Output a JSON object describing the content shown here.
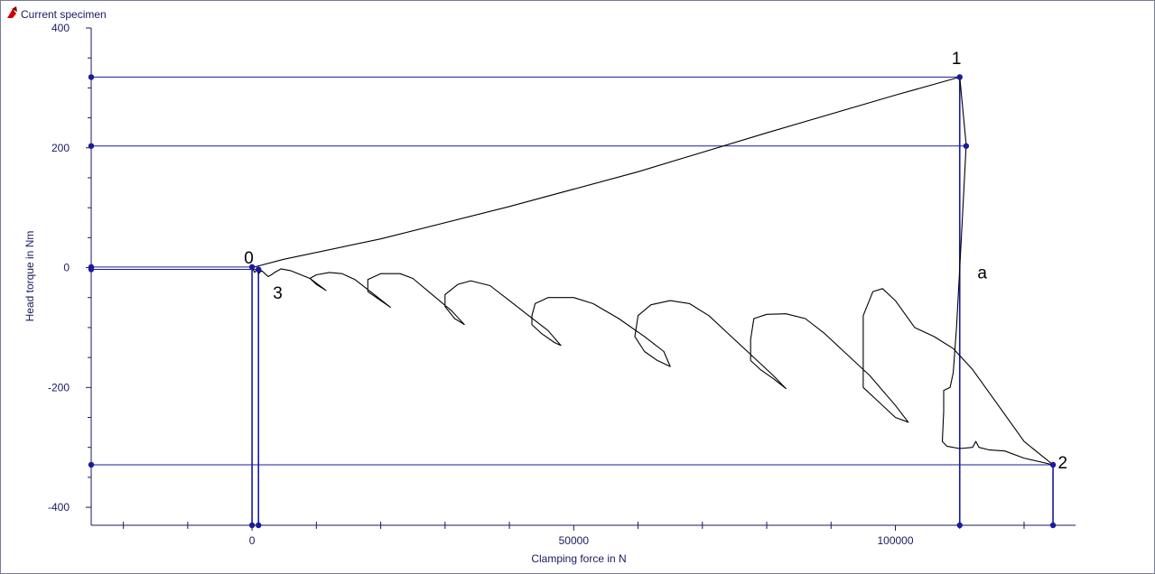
{
  "legend": {
    "label": "Current specimen",
    "icon": "red-specimen-icon",
    "icon_color": "#cc0000"
  },
  "chart_data": {
    "type": "line",
    "xlabel": "Clamping force in N",
    "ylabel": "Head torque in Nm",
    "xlim": [
      -25000,
      128000
    ],
    "ylim": [
      -430,
      400
    ],
    "x_ticks": [
      0,
      50000,
      100000
    ],
    "y_ticks": [
      400,
      200,
      0,
      -200,
      -400
    ],
    "curve_color": "#000000",
    "marker_color": "#1a1aa0",
    "annotations": [
      {
        "text": "0",
        "x": -500,
        "y": 7
      },
      {
        "text": "1",
        "x": 109500,
        "y": 340
      },
      {
        "text": "2",
        "x": 126000,
        "y": -335
      },
      {
        "text": "3",
        "x": 4000,
        "y": -52
      },
      {
        "text": "a",
        "x": 113500,
        "y": -18
      }
    ],
    "reference_lines": {
      "horizontal_y": [
        318,
        203,
        1,
        -3,
        -329
      ],
      "vertical_x": [
        0,
        1000,
        110000,
        124500
      ]
    },
    "series": [
      {
        "points": [
          [
            0,
            0
          ],
          [
            5000,
            14
          ],
          [
            20000,
            48
          ],
          [
            40000,
            102
          ],
          [
            60000,
            160
          ],
          [
            80000,
            225
          ],
          [
            100000,
            288
          ],
          [
            110000,
            318
          ],
          [
            111000,
            205
          ],
          [
            110500,
            100
          ],
          [
            110000,
            0
          ],
          [
            109500,
            -100
          ],
          [
            109000,
            -175
          ],
          [
            108500,
            -200
          ],
          [
            107500,
            -205
          ],
          [
            107500,
            -240
          ],
          [
            107300,
            -290
          ],
          [
            108000,
            -298
          ],
          [
            110000,
            -302
          ],
          [
            112000,
            -300
          ],
          [
            112500,
            -290
          ],
          [
            113000,
            -300
          ],
          [
            114500,
            -304
          ],
          [
            117000,
            -306
          ],
          [
            120000,
            -318
          ],
          [
            124500,
            -329
          ],
          [
            120000,
            -290
          ],
          [
            116000,
            -230
          ],
          [
            112000,
            -170
          ],
          [
            109000,
            -135
          ],
          [
            106000,
            -115
          ],
          [
            103000,
            -100
          ],
          [
            100000,
            -55
          ],
          [
            98000,
            -35
          ],
          [
            96500,
            -40
          ],
          [
            95000,
            -80
          ],
          [
            95000,
            -160
          ],
          [
            95000,
            -200
          ],
          [
            97000,
            -220
          ],
          [
            100000,
            -250
          ],
          [
            102000,
            -258
          ],
          [
            100000,
            -230
          ],
          [
            96000,
            -180
          ],
          [
            92000,
            -140
          ],
          [
            89000,
            -110
          ],
          [
            86000,
            -85
          ],
          [
            83000,
            -77
          ],
          [
            80000,
            -78
          ],
          [
            78000,
            -85
          ],
          [
            77500,
            -120
          ],
          [
            77500,
            -155
          ],
          [
            79000,
            -170
          ],
          [
            81000,
            -185
          ],
          [
            83000,
            -202
          ],
          [
            81000,
            -180
          ],
          [
            78000,
            -150
          ],
          [
            74000,
            -110
          ],
          [
            71000,
            -80
          ],
          [
            68000,
            -60
          ],
          [
            65000,
            -55
          ],
          [
            62000,
            -62
          ],
          [
            60000,
            -80
          ],
          [
            59500,
            -115
          ],
          [
            61000,
            -140
          ],
          [
            63000,
            -155
          ],
          [
            65000,
            -165
          ],
          [
            64000,
            -140
          ],
          [
            61000,
            -115
          ],
          [
            57000,
            -85
          ],
          [
            53000,
            -60
          ],
          [
            50000,
            -50
          ],
          [
            46000,
            -50
          ],
          [
            44000,
            -60
          ],
          [
            43500,
            -80
          ],
          [
            43500,
            -95
          ],
          [
            45000,
            -110
          ],
          [
            47000,
            -125
          ],
          [
            48000,
            -130
          ],
          [
            46000,
            -105
          ],
          [
            43000,
            -80
          ],
          [
            40000,
            -55
          ],
          [
            37000,
            -30
          ],
          [
            34000,
            -22
          ],
          [
            32000,
            -28
          ],
          [
            30000,
            -45
          ],
          [
            30000,
            -65
          ],
          [
            31500,
            -85
          ],
          [
            33000,
            -95
          ],
          [
            31000,
            -72
          ],
          [
            28000,
            -45
          ],
          [
            25000,
            -18
          ],
          [
            23000,
            -10
          ],
          [
            20000,
            -10
          ],
          [
            18000,
            -20
          ],
          [
            18000,
            -40
          ],
          [
            20000,
            -55
          ],
          [
            21500,
            -66
          ],
          [
            19000,
            -45
          ],
          [
            16000,
            -20
          ],
          [
            14000,
            -10
          ],
          [
            12000,
            -8
          ],
          [
            10000,
            -12
          ],
          [
            9000,
            -18
          ],
          [
            10000,
            -28
          ],
          [
            11500,
            -38
          ],
          [
            9000,
            -18
          ],
          [
            6000,
            -5
          ],
          [
            4500,
            -2
          ],
          [
            3500,
            -8
          ],
          [
            3000,
            -12
          ],
          [
            2500,
            -15
          ],
          [
            2000,
            -10
          ],
          [
            1500,
            -5
          ],
          [
            1000,
            -10
          ],
          [
            700,
            -3
          ],
          [
            400,
            -8
          ],
          [
            0,
            0
          ]
        ]
      }
    ],
    "markers": [
      {
        "x": -25000,
        "y": 318
      },
      {
        "x": -25000,
        "y": 203
      },
      {
        "x": -25000,
        "y": 1
      },
      {
        "x": -25000,
        "y": -3
      },
      {
        "x": -25000,
        "y": -329
      },
      {
        "x": 0,
        "y": -430
      },
      {
        "x": 1000,
        "y": -430
      },
      {
        "x": 110000,
        "y": -430
      },
      {
        "x": 124500,
        "y": -430
      },
      {
        "x": 110000,
        "y": 318
      },
      {
        "x": 111000,
        "y": 203
      },
      {
        "x": 124500,
        "y": -329
      },
      {
        "x": 0,
        "y": 1
      },
      {
        "x": 1000,
        "y": -3
      }
    ]
  }
}
